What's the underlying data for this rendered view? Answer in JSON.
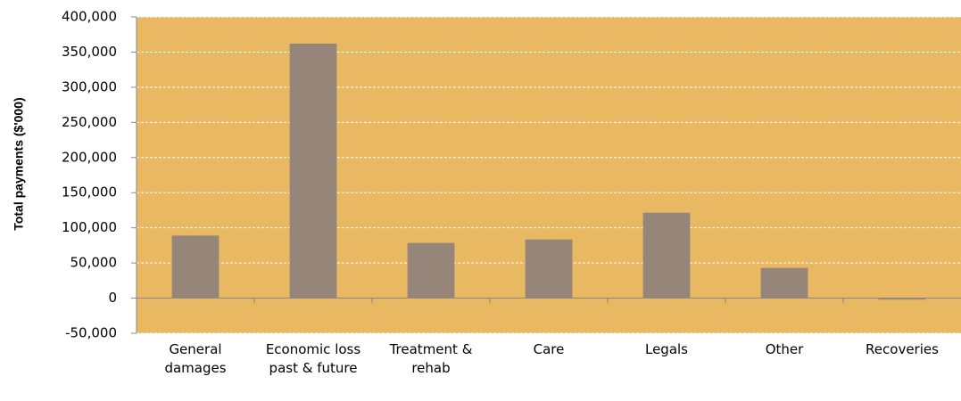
{
  "chart_data": {
    "type": "bar",
    "y_label": "Total payments ($'000)",
    "categories": [
      "General damages",
      "Economic loss past & future",
      "Treatment & rehab",
      "Care",
      "Legals",
      "Other",
      "Recoveries"
    ],
    "values": [
      89000,
      362000,
      78500,
      83500,
      121500,
      43000,
      -2000
    ],
    "color": "#968679",
    "background": "#e8b862",
    "ylim": [
      -50000,
      400000
    ],
    "yticks": [
      {
        "value": -50000,
        "label": "-50,000"
      },
      {
        "value": 0,
        "label": "0"
      },
      {
        "value": 50000,
        "label": "50,000"
      },
      {
        "value": 100000,
        "label": "100,000"
      },
      {
        "value": 150000,
        "label": "150,000"
      },
      {
        "value": 200000,
        "label": "200,000"
      },
      {
        "value": 250000,
        "label": "250,000"
      },
      {
        "value": 300000,
        "label": "300,000"
      },
      {
        "value": 350000,
        "label": "350,000"
      },
      {
        "value": 400000,
        "label": "400,000"
      }
    ],
    "grid": true
  }
}
